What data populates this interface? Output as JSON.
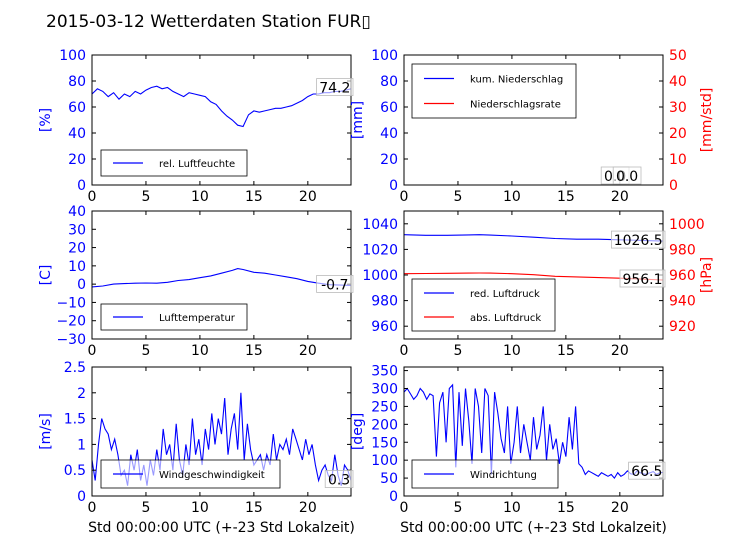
{
  "title": "2015-03-12 Wetterdaten Station FUR▯",
  "colors": {
    "blue": "#0000ff",
    "red": "#ff0000",
    "axis": "#000000"
  },
  "chart_data": [
    {
      "id": "humidity",
      "type": "line",
      "legend_placement": "lower-left",
      "xlabel": "",
      "ylabel": "[%]",
      "xlim": [
        0,
        24
      ],
      "ylim": [
        0,
        100
      ],
      "xticks": [
        0,
        5,
        10,
        15,
        20
      ],
      "yticks": [
        0,
        20,
        40,
        60,
        80,
        100
      ],
      "series": [
        {
          "name": "rel. Luftfeuchte",
          "color": "#0000ff",
          "x": [
            0,
            0.5,
            1,
            1.5,
            2,
            2.5,
            3,
            3.5,
            4,
            4.5,
            5,
            5.5,
            6,
            6.5,
            7,
            7.5,
            8,
            8.5,
            9,
            9.5,
            10,
            10.5,
            11,
            11.5,
            12,
            12.5,
            13,
            13.5,
            14,
            14.5,
            15,
            15.5,
            16,
            16.5,
            17,
            17.5,
            18,
            18.5,
            19,
            19.5,
            20,
            20.5,
            21,
            21.5,
            22,
            22.5,
            23,
            23.5,
            24
          ],
          "y": [
            70,
            74,
            72,
            68,
            71,
            66,
            70,
            68,
            72,
            70,
            73,
            75,
            76,
            74,
            75,
            72,
            70,
            68,
            71,
            70,
            69,
            68,
            64,
            62,
            57,
            53,
            50,
            46,
            45,
            54,
            57,
            56,
            57,
            58,
            59,
            59,
            60,
            61,
            63,
            65,
            68,
            70,
            70,
            71,
            71,
            72,
            72,
            73,
            74
          ]
        }
      ],
      "annotations": [
        "74.2"
      ]
    },
    {
      "id": "precipitation",
      "type": "line",
      "legend_placement": "upper-left",
      "xlabel": "",
      "ylabel": "[mm]",
      "y2label": "[mm/std]",
      "xlim": [
        0,
        24
      ],
      "ylim": [
        0,
        100
      ],
      "y2lim": [
        0,
        50
      ],
      "xticks": [
        0,
        5,
        10,
        15,
        20
      ],
      "yticks": [
        0,
        20,
        40,
        60,
        80,
        100
      ],
      "y2ticks": [
        0,
        10,
        20,
        30,
        40,
        50
      ],
      "series": [
        {
          "name": "kum. Niederschlag",
          "color": "#0000ff",
          "axis": "left",
          "x": [
            0,
            24
          ],
          "y": [
            0,
            0
          ]
        },
        {
          "name": "Niederschlagsrate",
          "color": "#ff0000",
          "axis": "right",
          "x": [
            0,
            24
          ],
          "y": [
            0,
            0
          ]
        }
      ],
      "annotations": [
        "0.0",
        "0.0"
      ]
    },
    {
      "id": "temperature",
      "type": "line",
      "legend_placement": "lower-left",
      "xlabel": "",
      "ylabel": "[C]",
      "xlim": [
        0,
        24
      ],
      "ylim": [
        -30,
        40
      ],
      "xticks": [
        0,
        5,
        10,
        15,
        20
      ],
      "yticks": [
        -30,
        -20,
        -10,
        0,
        10,
        20,
        30,
        40
      ],
      "series": [
        {
          "name": "Lufttemperatur",
          "color": "#0000ff",
          "x": [
            0,
            1,
            2,
            3,
            4,
            5,
            6,
            7,
            8,
            9,
            10,
            11,
            12,
            13,
            13.5,
            14,
            15,
            16,
            17,
            18,
            19,
            20,
            21,
            22,
            23,
            24
          ],
          "y": [
            -1.5,
            -1,
            0,
            0.3,
            0.5,
            0.6,
            0.5,
            1,
            2,
            2.5,
            3.5,
            4.5,
            6,
            7.5,
            8.5,
            8,
            6.5,
            6,
            5,
            4,
            3,
            1.5,
            0.5,
            -0.3,
            -0.5,
            -0.7
          ]
        }
      ],
      "annotations": [
        "-0.7"
      ]
    },
    {
      "id": "pressure",
      "type": "line",
      "legend_placement": "lower-left",
      "xlabel": "",
      "ylabel": "",
      "y2label": "[hPa]",
      "xlim": [
        0,
        24
      ],
      "ylim": [
        950,
        1050
      ],
      "y2lim": [
        910,
        1010
      ],
      "xticks": [
        0,
        5,
        10,
        15,
        20
      ],
      "yticks": [
        960,
        980,
        1000,
        1020,
        1040
      ],
      "y2ticks": [
        920,
        940,
        960,
        980,
        1000
      ],
      "series": [
        {
          "name": "red. Luftdruck",
          "color": "#0000ff",
          "axis": "left",
          "x": [
            0,
            2,
            4,
            6,
            7,
            8,
            10,
            12,
            14,
            16,
            18,
            20,
            22,
            24
          ],
          "y": [
            1031.5,
            1031,
            1031,
            1031.3,
            1031.5,
            1031.2,
            1030.5,
            1029.5,
            1028.5,
            1028,
            1028,
            1027.5,
            1027,
            1026.5
          ]
        },
        {
          "name": "abs. Luftdruck",
          "color": "#ff0000",
          "axis": "right",
          "x": [
            0,
            2,
            4,
            6,
            7,
            8,
            10,
            12,
            14,
            16,
            18,
            20,
            22,
            24
          ],
          "y": [
            961,
            961.2,
            961.3,
            961.5,
            961.6,
            961.5,
            961,
            960.2,
            959,
            958.5,
            958,
            957.5,
            956.8,
            956.1
          ]
        }
      ],
      "annotations": [
        "1026.5",
        "956.1"
      ]
    },
    {
      "id": "windspeed",
      "type": "line",
      "legend_placement": "lower-left",
      "xlabel": "Std 00:00:00 UTC (+-23 Std Lokalzeit)",
      "ylabel": "[m/s]",
      "xlim": [
        0,
        24
      ],
      "ylim": [
        0,
        2.5
      ],
      "xticks": [
        0,
        5,
        10,
        15,
        20
      ],
      "yticks": [
        0,
        0.5,
        1,
        1.5,
        2,
        2.5
      ],
      "series": [
        {
          "name": "Windgeschwindigkeit",
          "color": "#0000ff",
          "x": [
            0,
            0.3,
            0.6,
            0.9,
            1.2,
            1.5,
            1.8,
            2.1,
            2.4,
            2.7,
            3,
            3.3,
            3.6,
            3.9,
            4.2,
            4.5,
            4.8,
            5.1,
            5.4,
            5.7,
            6,
            6.3,
            6.6,
            6.9,
            7.2,
            7.5,
            7.8,
            8.1,
            8.4,
            8.7,
            9,
            9.3,
            9.6,
            9.9,
            10.2,
            10.5,
            10.8,
            11.1,
            11.4,
            11.7,
            12,
            12.3,
            12.6,
            12.9,
            13.2,
            13.5,
            13.8,
            14.1,
            14.4,
            14.7,
            15,
            15.3,
            15.6,
            15.9,
            16.2,
            16.5,
            16.8,
            17.1,
            17.4,
            17.7,
            18,
            18.3,
            18.6,
            18.9,
            19.2,
            19.5,
            19.8,
            20.1,
            20.4,
            20.7,
            21,
            21.3,
            21.6,
            21.9,
            22.2,
            22.5,
            22.8,
            23.1,
            23.4,
            23.7,
            24
          ],
          "y": [
            0.7,
            0.3,
            1.0,
            1.5,
            1.3,
            1.2,
            0.9,
            1.1,
            0.8,
            0.4,
            0.5,
            0.2,
            0.8,
            0.5,
            0.9,
            0.3,
            0.6,
            0.2,
            0.7,
            0.4,
            0.9,
            0.5,
            1.3,
            0.8,
            1.0,
            0.5,
            1.4,
            0.7,
            0.4,
            1.0,
            0.6,
            1.5,
            0.8,
            1.1,
            0.6,
            1.3,
            0.9,
            1.6,
            1.0,
            1.5,
            1.2,
            1.9,
            0.8,
            1.3,
            1.6,
            0.9,
            2.0,
            0.7,
            1.4,
            0.9,
            0.6,
            0.7,
            0.8,
            0.5,
            0.8,
            0.6,
            1.2,
            0.7,
            1.0,
            0.9,
            1.1,
            0.8,
            1.3,
            1.1,
            0.9,
            0.7,
            1.1,
            0.8,
            1.0,
            0.6,
            0.3,
            0.5,
            0.6,
            0.4,
            0.3,
            0.8,
            0.4,
            0.2,
            0.6,
            0.5,
            0.3
          ]
        }
      ],
      "annotations": [
        "0.3"
      ]
    },
    {
      "id": "winddirection",
      "type": "line",
      "legend_placement": "lower-left",
      "xlabel": "Std 00:00:00 UTC (+-23 Std Lokalzeit)",
      "ylabel": "[deg]",
      "xlim": [
        0,
        24
      ],
      "ylim": [
        0,
        360
      ],
      "xticks": [
        0,
        5,
        10,
        15,
        20
      ],
      "yticks": [
        0,
        50,
        100,
        150,
        200,
        250,
        300,
        350
      ],
      "series": [
        {
          "name": "Windrichtung",
          "color": "#0000ff",
          "x": [
            0,
            0.3,
            0.6,
            0.9,
            1.2,
            1.5,
            1.8,
            2.1,
            2.4,
            2.7,
            3,
            3.3,
            3.6,
            3.9,
            4.2,
            4.5,
            4.8,
            5.1,
            5.4,
            5.7,
            6,
            6.3,
            6.6,
            6.9,
            7.2,
            7.5,
            7.8,
            8.1,
            8.4,
            8.7,
            9,
            9.3,
            9.6,
            9.9,
            10.2,
            10.5,
            10.8,
            11.1,
            11.4,
            11.7,
            12,
            12.3,
            12.6,
            12.9,
            13.2,
            13.5,
            13.8,
            14.1,
            14.4,
            14.7,
            15,
            15.3,
            15.6,
            15.9,
            16.2,
            16.5,
            16.8,
            17.1,
            17.4,
            17.7,
            18,
            18.3,
            18.6,
            18.9,
            19.2,
            19.5,
            19.8,
            20.1,
            20.4,
            20.7,
            21,
            21.3,
            21.6,
            21.9,
            22.2,
            22.5,
            22.8,
            23.1,
            23.4,
            23.7,
            24
          ],
          "y": [
            290,
            300,
            285,
            270,
            280,
            300,
            290,
            270,
            285,
            280,
            110,
            260,
            290,
            150,
            300,
            310,
            80,
            290,
            140,
            300,
            210,
            90,
            300,
            250,
            120,
            300,
            280,
            60,
            290,
            230,
            160,
            120,
            250,
            90,
            150,
            250,
            120,
            200,
            150,
            100,
            220,
            130,
            170,
            250,
            100,
            200,
            130,
            160,
            90,
            150,
            110,
            220,
            130,
            250,
            90,
            80,
            60,
            70,
            65,
            60,
            55,
            65,
            60,
            55,
            60,
            50,
            65,
            55,
            60,
            70,
            62,
            60,
            70,
            65,
            62,
            60,
            65,
            68,
            60,
            65,
            66
          ]
        }
      ],
      "annotations": [
        "66.5"
      ]
    }
  ]
}
